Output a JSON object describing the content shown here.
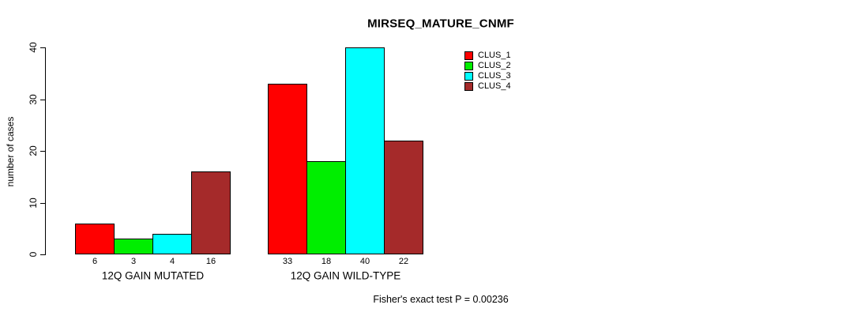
{
  "chart_data": {
    "type": "bar",
    "title": "MIRSEQ_MATURE_CNMF",
    "ylabel": "number of cases",
    "xlabel": "",
    "ylim": [
      0,
      40
    ],
    "yticks": [
      0,
      10,
      20,
      30,
      40
    ],
    "grid": false,
    "categories": [
      "12Q GAIN MUTATED",
      "12Q GAIN WILD-TYPE"
    ],
    "series": [
      {
        "name": "CLUS_1",
        "color": "#FF0000",
        "values": [
          6,
          33
        ]
      },
      {
        "name": "CLUS_2",
        "color": "#00EE00",
        "values": [
          3,
          18
        ]
      },
      {
        "name": "CLUS_3",
        "color": "#00FFFF",
        "values": [
          4,
          40
        ]
      },
      {
        "name": "CLUS_4",
        "color": "#A52A2A",
        "values": [
          16,
          22
        ]
      }
    ],
    "bar_value_labels": [
      [
        6,
        3,
        4,
        16
      ],
      [
        33,
        18,
        40,
        22
      ]
    ],
    "legend": {
      "position": "top-right",
      "entries": [
        "CLUS_1",
        "CLUS_2",
        "CLUS_3",
        "CLUS_4"
      ]
    },
    "annotation": "Fisher's exact test P = 0.00236",
    "bar_border_color": "#000000",
    "axis_color": "#000000"
  }
}
